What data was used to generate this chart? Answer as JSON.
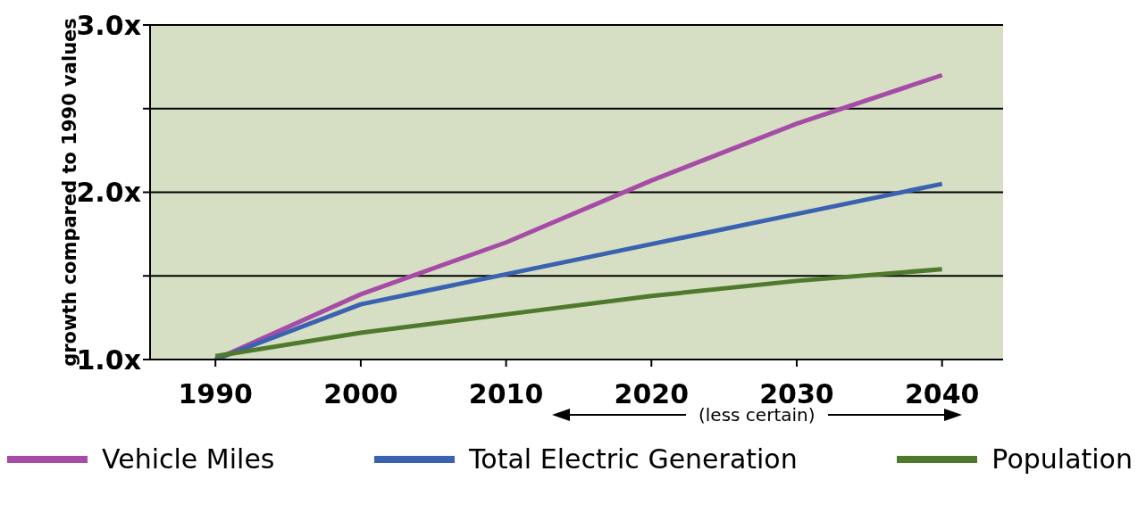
{
  "chart_data": {
    "type": "line",
    "ylabel": "growth compared to 1990 values",
    "x": [
      1990,
      2000,
      2010,
      2020,
      2030,
      2040
    ],
    "series": [
      {
        "name": "Vehicle Miles",
        "color": "#a64ca6",
        "values": [
          1.0,
          1.39,
          1.7,
          2.07,
          2.41,
          2.7
        ]
      },
      {
        "name": "Total Electric Generation",
        "color": "#3a62b0",
        "values": [
          1.0,
          1.33,
          1.51,
          1.69,
          1.87,
          2.05
        ]
      },
      {
        "name": "Population",
        "color": "#4f7a2e",
        "values": [
          1.02,
          1.16,
          1.27,
          1.38,
          1.47,
          1.54
        ]
      }
    ],
    "xlim": [
      1985.5,
      2044.2
    ],
    "xticks": [
      1990,
      2000,
      2010,
      2020,
      2030,
      2040
    ],
    "ylim": [
      1.0,
      3.0
    ],
    "yticks": [
      {
        "value": 1.0,
        "label": "1.0x"
      },
      {
        "value": 1.5,
        "label": null
      },
      {
        "value": 2.0,
        "label": "2.0x"
      },
      {
        "value": 2.5,
        "label": null
      },
      {
        "value": 3.0,
        "label": "3.0x"
      }
    ],
    "grid": "y",
    "legend": "bottom",
    "marker": "none",
    "line_style": "solid",
    "annotations": [
      "(less certain)"
    ]
  }
}
